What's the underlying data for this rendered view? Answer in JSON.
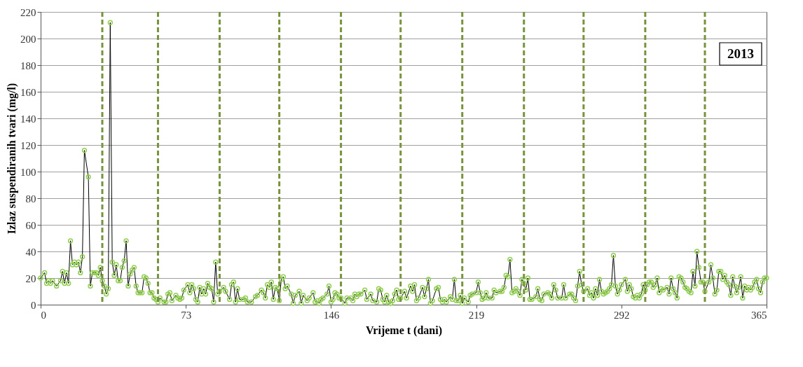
{
  "chart_data": {
    "type": "line",
    "xlabel": "Vrijeme  t (dani)",
    "ylabel": "Izlaz suspendiranih  tvari (mg/l)",
    "annotations": [
      "2013"
    ],
    "xlim": [
      0,
      365
    ],
    "xticks": [
      0,
      73,
      146,
      219,
      292,
      365
    ],
    "ylim": [
      0,
      220
    ],
    "yticks": [
      0,
      20,
      40,
      60,
      80,
      100,
      120,
      140,
      160,
      180,
      200,
      220
    ],
    "grid": "y",
    "marker": "circle",
    "line_style": "solid",
    "series": [
      {
        "color": "#92d050",
        "x": [
          0,
          2,
          3,
          4,
          5,
          6,
          8,
          10,
          11,
          12,
          13,
          14,
          15,
          16,
          17,
          18,
          19,
          20,
          21,
          22,
          24,
          25,
          26,
          27,
          28,
          29,
          30,
          31,
          32,
          33,
          34,
          35,
          36,
          37,
          38,
          39,
          40,
          41,
          42,
          43,
          44,
          45,
          46,
          47,
          48,
          49,
          50,
          51,
          52,
          53,
          54,
          55,
          56,
          57,
          58,
          59,
          60,
          62,
          63,
          64,
          65,
          66,
          68,
          69,
          70,
          71,
          72,
          74,
          75,
          76,
          77,
          78,
          79,
          80,
          81,
          82,
          83,
          84,
          85,
          86,
          87,
          88,
          89,
          90,
          92,
          93,
          95,
          96,
          97,
          98,
          99,
          100,
          102,
          103,
          104,
          106,
          108,
          109,
          111,
          112,
          113,
          114,
          115,
          116,
          117,
          118,
          119,
          120,
          121,
          122,
          123,
          124,
          126,
          127,
          128,
          130,
          131,
          132,
          134,
          135,
          137,
          138,
          139,
          140,
          141,
          142,
          144,
          145,
          146,
          147,
          148,
          149,
          150,
          151,
          153,
          154,
          156,
          157,
          158,
          159,
          160,
          161,
          163,
          164,
          166,
          167,
          169,
          170,
          171,
          172,
          173,
          174,
          175,
          176,
          177,
          178,
          179,
          180,
          181,
          183,
          184,
          186,
          187,
          188,
          189,
          190,
          192,
          193,
          194,
          195,
          196,
          197,
          199,
          200,
          201,
          202,
          203,
          204,
          206,
          207,
          208,
          209,
          210,
          211,
          212,
          213,
          215,
          216,
          217,
          219,
          220,
          221,
          222,
          223,
          224,
          225,
          227,
          228,
          229,
          231,
          232,
          233,
          234,
          235,
          236,
          237,
          238,
          239,
          240,
          241,
          242,
          243,
          244,
          245,
          246,
          247,
          249,
          250,
          251,
          252,
          253,
          255,
          256,
          257,
          258,
          259,
          260,
          262,
          263,
          264,
          266,
          267,
          268,
          269,
          270,
          271,
          272,
          273,
          275,
          276,
          277,
          278,
          279,
          280,
          281,
          282,
          283,
          284,
          285,
          286,
          287,
          288,
          289,
          290,
          291,
          292,
          294,
          295,
          296,
          297,
          298,
          299,
          300,
          301,
          302,
          303,
          304,
          305,
          306,
          307,
          308,
          309,
          310,
          311,
          312,
          313,
          315,
          316,
          317,
          318,
          319,
          320,
          321,
          322,
          323,
          324,
          325,
          326,
          327,
          328,
          329,
          330,
          331,
          332,
          333,
          334,
          336,
          337,
          338,
          339,
          340,
          341,
          342,
          343,
          344,
          345,
          346,
          347,
          348,
          349,
          350,
          351,
          352,
          353,
          354,
          355,
          356,
          357,
          358,
          359,
          360,
          361,
          362,
          363,
          364,
          365
        ],
        "values": [
          20,
          24,
          16,
          18,
          16,
          18,
          14,
          18,
          25,
          16,
          24,
          16,
          48,
          30,
          32,
          30,
          32,
          24,
          36,
          116,
          96,
          14,
          24,
          24,
          24,
          22,
          28,
          18,
          14,
          8,
          12,
          212,
          32,
          22,
          30,
          18,
          18,
          28,
          33,
          48,
          14,
          23,
          26,
          28,
          14,
          9,
          9,
          9,
          21,
          20,
          16,
          9,
          9,
          5,
          4,
          2,
          5,
          2,
          2,
          8,
          9,
          3,
          7,
          5,
          4,
          5,
          11,
          15,
          9,
          15,
          12,
          4,
          2,
          13,
          8,
          12,
          8,
          16,
          13,
          12,
          2,
          32,
          8,
          10,
          13,
          10,
          4,
          15,
          17,
          2,
          12,
          4,
          4,
          5,
          2,
          2,
          6,
          7,
          11,
          9,
          5,
          15,
          13,
          17,
          4,
          13,
          12,
          3,
          19,
          21,
          12,
          14,
          8,
          1,
          7,
          10,
          1,
          7,
          3,
          5,
          9,
          2,
          3,
          1,
          4,
          5,
          8,
          14,
          2,
          4,
          9,
          8,
          5,
          5,
          1,
          5,
          5,
          3,
          8,
          6,
          8,
          8,
          11,
          4,
          8,
          3,
          2,
          12,
          11,
          4,
          2,
          7,
          2,
          1,
          3,
          8,
          11,
          4,
          5,
          10,
          5,
          14,
          10,
          15,
          3,
          5,
          13,
          6,
          12,
          19,
          1,
          3,
          12,
          13,
          4,
          2,
          4,
          2,
          6,
          4,
          19,
          3,
          3,
          7,
          1,
          5,
          2,
          7,
          8,
          9,
          17,
          9,
          4,
          5,
          9,
          5,
          5,
          11,
          9,
          10,
          10,
          13,
          22,
          21,
          34,
          9,
          10,
          12,
          10,
          7,
          19,
          16,
          11,
          20,
          4,
          4,
          6,
          12,
          4,
          3,
          8,
          9,
          8,
          5,
          15,
          11,
          5,
          5,
          15,
          5,
          8,
          8,
          5,
          3,
          14,
          25,
          15,
          10,
          12,
          7,
          9,
          5,
          12,
          7,
          19,
          10,
          8,
          9,
          10,
          12,
          15,
          37,
          14,
          8,
          11,
          15,
          19,
          10,
          15,
          12,
          6,
          5,
          7,
          5,
          8,
          15,
          11,
          15,
          17,
          17,
          13,
          15,
          20,
          9,
          12,
          11,
          13,
          8,
          20,
          12,
          9,
          5,
          21,
          20,
          17,
          13,
          12,
          10,
          9,
          25,
          14,
          40,
          28,
          17,
          17,
          10,
          17,
          30,
          20,
          8,
          11,
          25,
          25,
          19,
          22,
          17,
          15,
          7,
          21,
          14,
          9,
          13,
          21,
          5,
          14,
          11,
          13,
          11,
          13,
          17,
          19,
          12,
          9,
          17,
          20,
          20
        ]
      }
    ],
    "ref_lines": [
      {
        "axis": "x",
        "value": 31,
        "color": "#77933c",
        "line_style": "dashed"
      },
      {
        "axis": "x",
        "value": 59,
        "color": "#77933c",
        "line_style": "dashed"
      },
      {
        "axis": "x",
        "value": 90,
        "color": "#77933c",
        "line_style": "dashed"
      },
      {
        "axis": "x",
        "value": 120,
        "color": "#77933c",
        "line_style": "dashed"
      },
      {
        "axis": "x",
        "value": 151,
        "color": "#77933c",
        "line_style": "dashed"
      },
      {
        "axis": "x",
        "value": 181,
        "color": "#77933c",
        "line_style": "dashed"
      },
      {
        "axis": "x",
        "value": 212,
        "color": "#77933c",
        "line_style": "dashed"
      },
      {
        "axis": "x",
        "value": 243,
        "color": "#77933c",
        "line_style": "dashed"
      },
      {
        "axis": "x",
        "value": 273,
        "color": "#77933c",
        "line_style": "dashed"
      },
      {
        "axis": "x",
        "value": 304,
        "color": "#77933c",
        "line_style": "dashed"
      },
      {
        "axis": "x",
        "value": 334,
        "color": "#77933c",
        "line_style": "dashed"
      }
    ]
  }
}
